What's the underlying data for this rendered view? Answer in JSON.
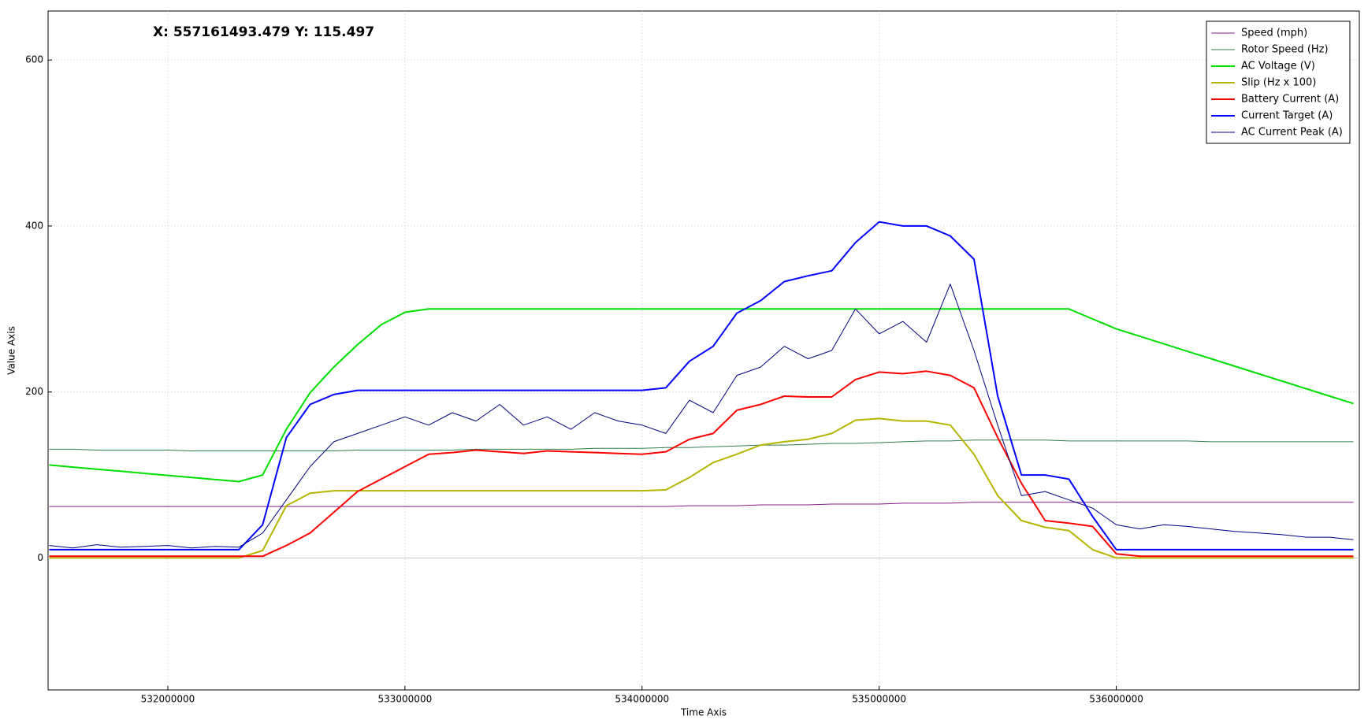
{
  "chart_data": {
    "type": "line",
    "annotation": "X: 557161493.479 Y: 115.497",
    "x_label": "Time Axis",
    "y_label": "Value Axis",
    "xlim": [
      531495000,
      537025000
    ],
    "ylim": [
      -159,
      659
    ],
    "xticks": [
      532000000,
      533000000,
      534000000,
      535000000,
      536000000
    ],
    "yticks": [
      0,
      200,
      400,
      600
    ],
    "grid": true,
    "legend": "upper right",
    "x": [
      531500000,
      531600000,
      531700000,
      531800000,
      531900000,
      532000000,
      532100000,
      532200000,
      532300000,
      532400000,
      532500000,
      532600000,
      532700000,
      532800000,
      532900000,
      533000000,
      533100000,
      533200000,
      533300000,
      533400000,
      533500000,
      533600000,
      533700000,
      533800000,
      533900000,
      534000000,
      534100000,
      534200000,
      534300000,
      534400000,
      534500000,
      534600000,
      534700000,
      534800000,
      534900000,
      535000000,
      535100000,
      535200000,
      535300000,
      535400000,
      535500000,
      535600000,
      535700000,
      535800000,
      535900000,
      536000000,
      536100000,
      536200000,
      536300000,
      536400000,
      536500000,
      536600000,
      536700000,
      536800000,
      536900000,
      537000000
    ],
    "series": [
      {
        "name": "Speed (mph)",
        "color": "#8b1a8b",
        "width": 1,
        "values": [
          62,
          62,
          62,
          62,
          62,
          62,
          62,
          62,
          62,
          62,
          62,
          62,
          62,
          62,
          62,
          62,
          62,
          62,
          62,
          62,
          62,
          62,
          62,
          62,
          62,
          62,
          62,
          63,
          63,
          63,
          64,
          64,
          64,
          65,
          65,
          65,
          66,
          66,
          66,
          67,
          67,
          67,
          67,
          67,
          67,
          67,
          67,
          67,
          67,
          67,
          67,
          67,
          67,
          67,
          67,
          67
        ]
      },
      {
        "name": "Rotor Speed (Hz)",
        "color": "#2e7d4f",
        "width": 1,
        "values": [
          131,
          131,
          130,
          130,
          130,
          130,
          129,
          129,
          129,
          129,
          129,
          129,
          129,
          130,
          130,
          130,
          130,
          130,
          131,
          131,
          131,
          131,
          131,
          132,
          132,
          132,
          133,
          133,
          134,
          135,
          136,
          136,
          137,
          138,
          138,
          139,
          140,
          141,
          141,
          142,
          142,
          142,
          142,
          141,
          141,
          141,
          141,
          141,
          141,
          140,
          140,
          140,
          140,
          140,
          140,
          140
        ]
      },
      {
        "name": "AC Voltage (V)",
        "color": "#00dd00",
        "width": 2,
        "values": [
          112,
          109.5,
          107,
          104.5,
          102,
          99.5,
          97,
          94.5,
          92,
          100,
          155,
          199,
          230,
          257,
          281,
          296,
          300,
          300,
          300,
          300,
          300,
          300,
          300,
          300,
          300,
          300,
          300,
          300,
          300,
          300,
          300,
          300,
          300,
          300,
          300,
          300,
          300,
          300,
          300,
          300,
          300,
          300,
          300,
          300,
          288,
          276,
          267,
          258,
          249,
          240,
          231,
          222,
          213,
          204,
          195,
          186
        ]
      },
      {
        "name": "Slip (Hz x 100)",
        "color": "#b5b500",
        "width": 2,
        "values": [
          0,
          0,
          0,
          0,
          0,
          0,
          0,
          0,
          0,
          9,
          63,
          78,
          81,
          81,
          81,
          81,
          81,
          81,
          81,
          81,
          81,
          81,
          81,
          81,
          81,
          81,
          82,
          97,
          115,
          125,
          136,
          140,
          143,
          150,
          166,
          168,
          165,
          165,
          160,
          125,
          75,
          45,
          37,
          33,
          10,
          0,
          0,
          0,
          0,
          0,
          0,
          0,
          0,
          0,
          0,
          0
        ]
      },
      {
        "name": "Battery Current (A)",
        "color": "#ff0000",
        "width": 2,
        "values": [
          2,
          2,
          2,
          2,
          2,
          2,
          2,
          2,
          2,
          2,
          15,
          30,
          55,
          80,
          95,
          110,
          125,
          127,
          130,
          128,
          126,
          129,
          128,
          127,
          126,
          125,
          128,
          143,
          150,
          178,
          185,
          195,
          194,
          194,
          215,
          224,
          222,
          225,
          220,
          205,
          145,
          90,
          45,
          42,
          38,
          5,
          2,
          2,
          2,
          2,
          2,
          2,
          2,
          2,
          2,
          2
        ]
      },
      {
        "name": "Current Target (A)",
        "color": "#0000ff",
        "width": 2,
        "values": [
          10,
          10,
          10,
          10,
          10,
          10,
          10,
          10,
          10,
          40,
          145,
          185,
          197,
          202,
          202,
          202,
          202,
          202,
          202,
          202,
          202,
          202,
          202,
          202,
          202,
          202,
          205,
          237,
          255,
          295,
          310,
          333,
          340,
          346,
          380,
          405,
          400,
          400,
          388,
          360,
          195,
          100,
          100,
          95,
          50,
          10,
          10,
          10,
          10,
          10,
          10,
          10,
          10,
          10,
          10,
          10
        ]
      },
      {
        "name": "AC Current Peak (A)",
        "color": "#000080",
        "width": 1,
        "values": [
          15,
          12,
          16,
          13,
          14,
          15,
          12,
          14,
          13,
          30,
          70,
          110,
          140,
          150,
          160,
          170,
          160,
          175,
          165,
          185,
          160,
          170,
          155,
          175,
          165,
          160,
          150,
          190,
          175,
          220,
          230,
          255,
          240,
          250,
          300,
          270,
          285,
          260,
          330,
          250,
          160,
          75,
          80,
          70,
          60,
          40,
          35,
          40,
          38,
          35,
          32,
          30,
          28,
          25,
          25,
          22
        ]
      }
    ]
  }
}
